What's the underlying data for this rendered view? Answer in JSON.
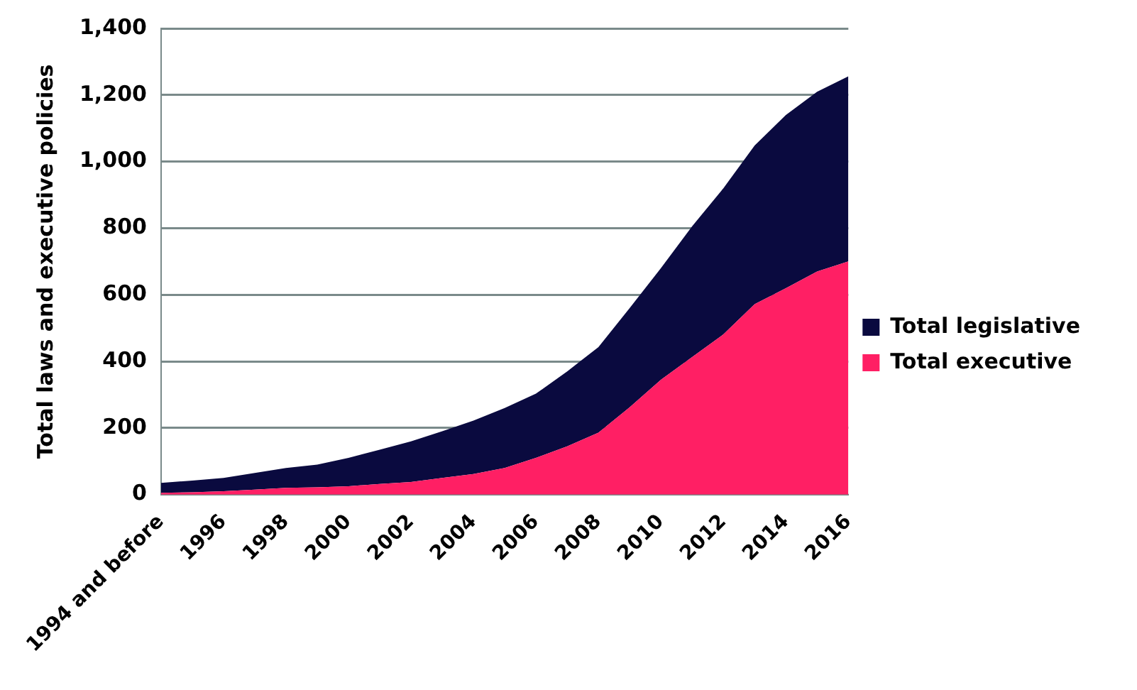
{
  "chart_data": {
    "type": "area",
    "stacked": true,
    "ylabel": "Total laws and executive policies",
    "categories": [
      "1994 and before",
      null,
      "1996",
      null,
      "1998",
      null,
      "2000",
      null,
      "2002",
      null,
      "2004",
      null,
      "2006",
      null,
      "2008",
      null,
      "2010",
      null,
      "2012",
      null,
      "2014",
      null,
      "2016"
    ],
    "series": [
      {
        "name": "Total executive",
        "color": "#ff1f64",
        "values": [
          5,
          7,
          10,
          15,
          20,
          22,
          25,
          32,
          38,
          50,
          62,
          80,
          110,
          145,
          186,
          262,
          345,
          413,
          481,
          572,
          620,
          670,
          700
        ]
      },
      {
        "name": "Total legislative",
        "color": "#0a0a3f",
        "values": [
          30,
          35,
          40,
          50,
          60,
          68,
          85,
          103,
          122,
          140,
          160,
          180,
          193,
          225,
          257,
          298,
          335,
          393,
          439,
          476,
          520,
          540,
          556
        ]
      }
    ],
    "ylim": [
      0,
      1400
    ],
    "yticks": [
      0,
      200,
      400,
      600,
      800,
      {
        "value": 1000,
        "label": "1,000"
      },
      {
        "value": 1200,
        "label": "1,200"
      },
      {
        "value": 1400,
        "label": "1,400"
      }
    ],
    "grid": "y",
    "legend": "right"
  }
}
